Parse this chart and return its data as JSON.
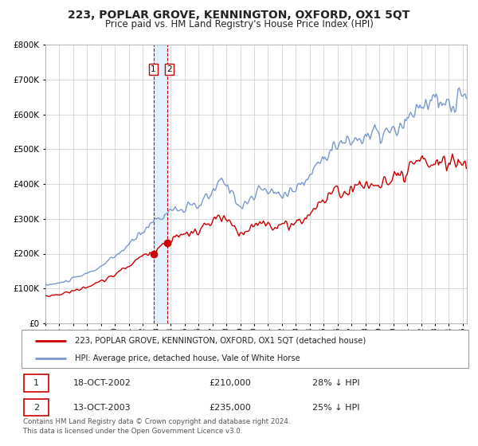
{
  "title": "223, POPLAR GROVE, KENNINGTON, OXFORD, OX1 5QT",
  "subtitle": "Price paid vs. HM Land Registry's House Price Index (HPI)",
  "legend_line1": "223, POPLAR GROVE, KENNINGTON, OXFORD, OX1 5QT (detached house)",
  "legend_line2": "HPI: Average price, detached house, Vale of White Horse",
  "sale1_date": "18-OCT-2002",
  "sale1_price": 210000,
  "sale1_hpi_pct": "28% ↓ HPI",
  "sale2_date": "13-OCT-2003",
  "sale2_price": 235000,
  "sale2_hpi_pct": "25% ↓ HPI",
  "footer": "Contains HM Land Registry data © Crown copyright and database right 2024.\nThis data is licensed under the Open Government Licence v3.0.",
  "hpi_color": "#7799cc",
  "price_color": "#cc0000",
  "sale_marker_color": "#cc0000",
  "vline_color": "#cc0000",
  "vshade_color": "#ddeeff",
  "grid_color": "#cccccc",
  "background_color": "#ffffff",
  "ylim_max": 800000,
  "xlim_start": 1995.0,
  "xlim_end": 2025.3
}
